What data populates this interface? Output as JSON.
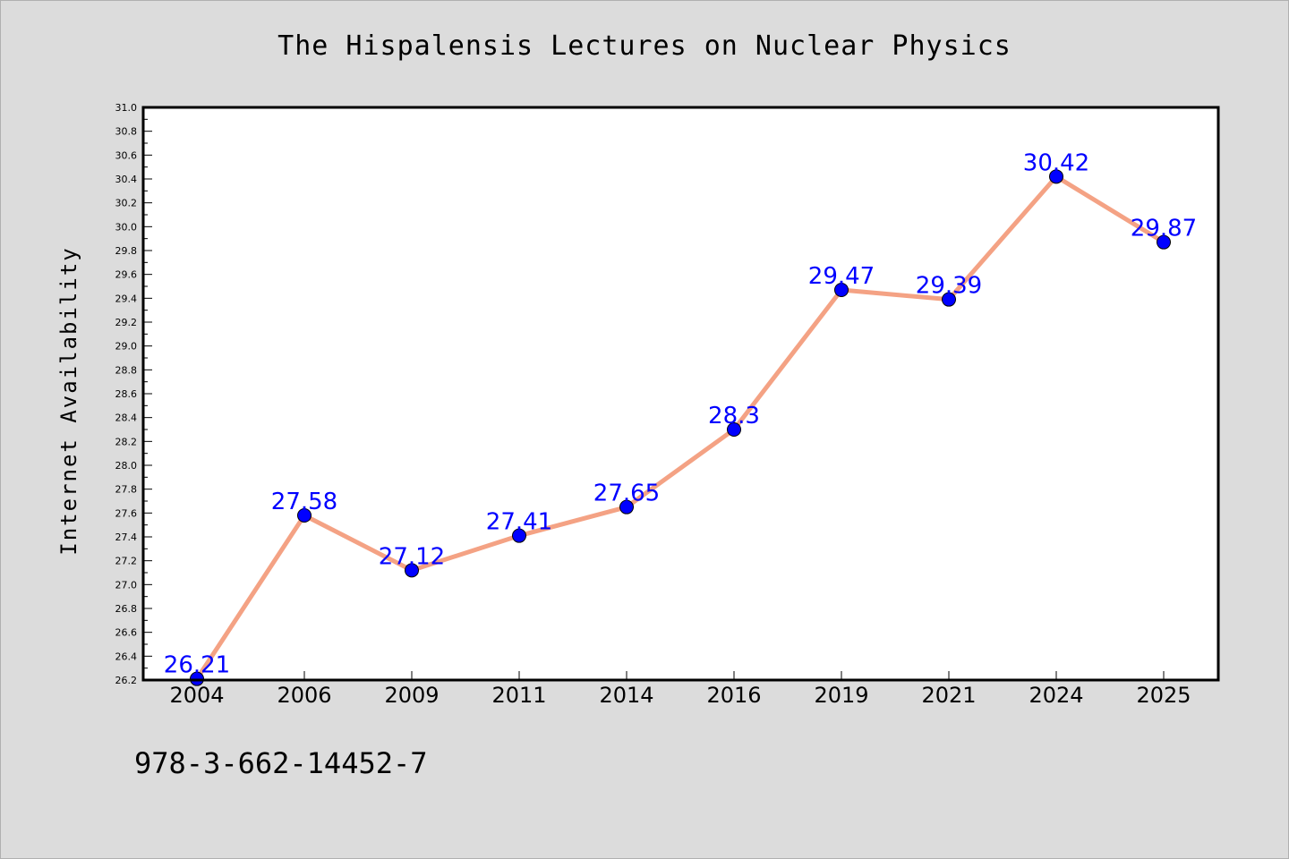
{
  "chart_data": {
    "type": "line",
    "title": "The Hispalensis Lectures on Nuclear Physics",
    "xlabel": "",
    "ylabel": "Internet Availability",
    "categories": [
      "2004",
      "2006",
      "2009",
      "2011",
      "2014",
      "2016",
      "2019",
      "2021",
      "2024",
      "2025"
    ],
    "series": [
      {
        "values": [
          26.21,
          27.58,
          27.12,
          27.41,
          27.65,
          28.3,
          29.47,
          29.39,
          30.42,
          29.87
        ],
        "data_labels": [
          "26.21",
          "27.58",
          "27.12",
          "27.41",
          "27.65",
          "28.3",
          "29.47",
          "29.39",
          "30.42",
          "29.87"
        ],
        "line_color": "#f4a284",
        "marker_color": "#0000ff"
      }
    ],
    "ylim": [
      26.2,
      31.0
    ],
    "y_ticks": [
      "26.2",
      "26.4",
      "26.6",
      "26.8",
      "27.0",
      "27.2",
      "27.4",
      "27.6",
      "27.8",
      "28.0",
      "28.2",
      "28.4",
      "28.6",
      "28.8",
      "29.0",
      "29.2",
      "29.4",
      "29.6",
      "29.8",
      "30.0",
      "30.2",
      "30.4",
      "30.6",
      "30.8",
      "31.0"
    ],
    "grid": false,
    "legend": "none"
  },
  "footer": {
    "isbn": "978-3-662-14452-7"
  },
  "colors": {
    "background": "#dcdcdc",
    "plot_background": "#ffffff",
    "line": "#f4a284",
    "marker": "#0000ff",
    "data_label": "#0000ff"
  }
}
